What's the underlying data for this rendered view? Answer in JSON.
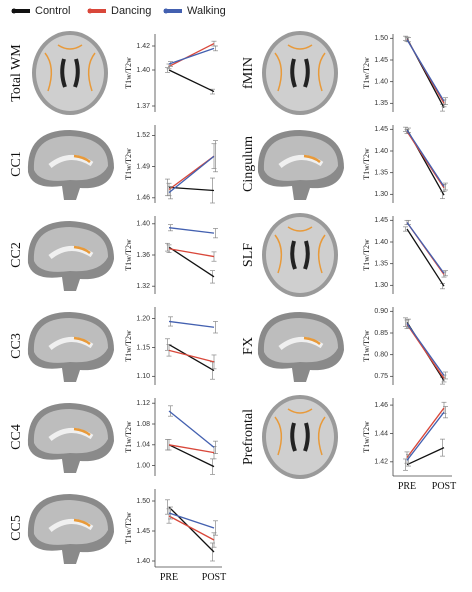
{
  "legend": [
    {
      "name": "Control",
      "color": "#111111"
    },
    {
      "name": "Dancing",
      "color": "#d9473a"
    },
    {
      "name": "Walking",
      "color": "#4360b0"
    }
  ],
  "chart_data": [
    {
      "type": "line",
      "title": "Total WM",
      "ylabel": "T1w/T2w",
      "ylim": [
        1.365,
        1.43
      ],
      "yticks": [
        1.37,
        {
          "value": 1.4,
          "label": "1.40"
        },
        1.42
      ],
      "series": [
        {
          "color": "#111111",
          "values": [
            1.4,
            1.382
          ],
          "errors": [
            0.002,
            0.002
          ]
        },
        {
          "color": "#d9473a",
          "values": [
            1.403,
            1.422
          ],
          "errors": [
            0.002,
            0.002
          ]
        },
        {
          "color": "#4360b0",
          "values": [
            1.405,
            1.418
          ],
          "errors": [
            0.002,
            0.002
          ]
        }
      ]
    },
    {
      "type": "line",
      "title": "CC1",
      "ylabel": "T1w/T2w",
      "ylim": [
        1.455,
        1.53
      ],
      "yticks": [
        1.46,
        1.49,
        1.52
      ],
      "series": [
        {
          "color": "#111111",
          "values": [
            1.47,
            1.467
          ],
          "errors": [
            0.008,
            0.012
          ]
        },
        {
          "color": "#d9473a",
          "values": [
            1.468,
            1.5
          ],
          "errors": [
            0.006,
            0.012
          ]
        },
        {
          "color": "#4360b0",
          "values": [
            1.465,
            1.5
          ],
          "errors": [
            0.006,
            0.015
          ]
        }
      ]
    },
    {
      "type": "line",
      "title": "CC2",
      "ylabel": "T1w/T2w",
      "ylim": [
        1.31,
        1.41
      ],
      "yticks": [
        1.32,
        1.36,
        {
          "value": 1.4,
          "label": "1.40"
        }
      ],
      "series": [
        {
          "color": "#111111",
          "values": [
            1.37,
            1.332
          ],
          "errors": [
            0.005,
            0.008
          ]
        },
        {
          "color": "#d9473a",
          "values": [
            1.368,
            1.358
          ],
          "errors": [
            0.005,
            0.006
          ]
        },
        {
          "color": "#4360b0",
          "values": [
            1.395,
            1.388
          ],
          "errors": [
            0.004,
            0.006
          ]
        }
      ]
    },
    {
      "type": "line",
      "title": "CC3",
      "ylabel": "T1w/T2w",
      "ylim": [
        1.085,
        1.22
      ],
      "yticks": [
        {
          "value": 1.1,
          "label": "1.10"
        },
        1.15,
        {
          "value": 1.2,
          "label": "1.20"
        }
      ],
      "series": [
        {
          "color": "#111111",
          "values": [
            1.155,
            1.11
          ],
          "errors": [
            0.01,
            0.015
          ]
        },
        {
          "color": "#d9473a",
          "values": [
            1.145,
            1.125
          ],
          "errors": [
            0.01,
            0.012
          ]
        },
        {
          "color": "#4360b0",
          "values": [
            1.195,
            1.185
          ],
          "errors": [
            0.008,
            0.01
          ]
        }
      ]
    },
    {
      "type": "line",
      "title": "CC4",
      "ylabel": "T1w/T2w",
      "ylim": [
        0.98,
        1.13
      ],
      "yticks": [
        {
          "value": 1.0,
          "label": "1.00"
        },
        1.04,
        1.08,
        1.12
      ],
      "series": [
        {
          "color": "#111111",
          "values": [
            1.04,
            0.998
          ],
          "errors": [
            0.01,
            0.015
          ]
        },
        {
          "color": "#d9473a",
          "values": [
            1.04,
            1.025
          ],
          "errors": [
            0.01,
            0.012
          ]
        },
        {
          "color": "#4360b0",
          "values": [
            1.105,
            1.035
          ],
          "errors": [
            0.01,
            0.012
          ]
        }
      ]
    },
    {
      "type": "line",
      "title": "CC5",
      "ylabel": "T1w/T2w",
      "categories": [
        "PRE",
        "POST"
      ],
      "ylim": [
        1.39,
        1.52
      ],
      "yticks": [
        {
          "value": 1.4,
          "label": "1.40"
        },
        1.45,
        {
          "value": 1.5,
          "label": "1.50"
        }
      ],
      "series": [
        {
          "color": "#111111",
          "values": [
            1.49,
            1.415
          ],
          "errors": [
            0.012,
            0.015
          ]
        },
        {
          "color": "#d9473a",
          "values": [
            1.475,
            1.435
          ],
          "errors": [
            0.012,
            0.012
          ]
        },
        {
          "color": "#4360b0",
          "values": [
            1.48,
            1.455
          ],
          "errors": [
            0.01,
            0.012
          ]
        }
      ]
    },
    {
      "type": "line",
      "title": "fMIN",
      "ylabel": "T1w/T2w",
      "ylim": [
        1.33,
        1.51
      ],
      "yticks": [
        1.35,
        {
          "value": 1.4,
          "label": "1.40"
        },
        1.45,
        {
          "value": 1.5,
          "label": "1.50"
        }
      ],
      "series": [
        {
          "color": "#111111",
          "values": [
            1.5,
            1.34
          ],
          "errors": [
            0.005,
            0.008
          ]
        },
        {
          "color": "#d9473a",
          "values": [
            1.498,
            1.35
          ],
          "errors": [
            0.005,
            0.008
          ]
        },
        {
          "color": "#4360b0",
          "values": [
            1.497,
            1.355
          ],
          "errors": [
            0.005,
            0.008
          ]
        }
      ]
    },
    {
      "type": "line",
      "title": "Cingulum",
      "ylabel": "T1w/T2w",
      "ylim": [
        1.28,
        1.46
      ],
      "yticks": [
        {
          "value": 1.3,
          "label": "1.30"
        },
        1.35,
        {
          "value": 1.4,
          "label": "1.40"
        },
        1.45
      ],
      "series": [
        {
          "color": "#111111",
          "values": [
            1.45,
            1.298
          ],
          "errors": [
            0.005,
            0.008
          ]
        },
        {
          "color": "#d9473a",
          "values": [
            1.445,
            1.315
          ],
          "errors": [
            0.005,
            0.008
          ]
        },
        {
          "color": "#4360b0",
          "values": [
            1.448,
            1.318
          ],
          "errors": [
            0.005,
            0.008
          ]
        }
      ]
    },
    {
      "type": "line",
      "title": "SLF",
      "ylabel": "T1w/T2w",
      "ylim": [
        1.28,
        1.46
      ],
      "yticks": [
        {
          "value": 1.3,
          "label": "1.30"
        },
        1.35,
        {
          "value": 1.4,
          "label": "1.40"
        },
        1.45
      ],
      "series": [
        {
          "color": "#111111",
          "values": [
            1.43,
            1.298
          ],
          "errors": [
            0.005,
            0.006
          ]
        },
        {
          "color": "#d9473a",
          "values": [
            1.445,
            1.325
          ],
          "errors": [
            0.005,
            0.006
          ]
        },
        {
          "color": "#4360b0",
          "values": [
            1.445,
            1.328
          ],
          "errors": [
            0.005,
            0.006
          ]
        }
      ]
    },
    {
      "type": "line",
      "title": "FX",
      "ylabel": "T1w/T2w",
      "ylim": [
        0.73,
        0.91
      ],
      "yticks": [
        0.75,
        {
          "value": 0.8,
          "label": "0.80"
        },
        0.85,
        {
          "value": 0.9,
          "label": "0.90"
        }
      ],
      "series": [
        {
          "color": "#111111",
          "values": [
            0.875,
            0.74
          ],
          "errors": [
            0.01,
            0.008
          ]
        },
        {
          "color": "#d9473a",
          "values": [
            0.87,
            0.745
          ],
          "errors": [
            0.01,
            0.008
          ]
        },
        {
          "color": "#4360b0",
          "values": [
            0.872,
            0.752
          ],
          "errors": [
            0.01,
            0.008
          ]
        }
      ]
    },
    {
      "type": "line",
      "title": "Prefrontal",
      "ylabel": "T1w/T2w",
      "categories": [
        "PRE",
        "POST"
      ],
      "ylim": [
        1.41,
        1.465
      ],
      "yticks": [
        1.42,
        1.44,
        1.46
      ],
      "series": [
        {
          "color": "#111111",
          "values": [
            1.418,
            1.43
          ],
          "errors": [
            0.004,
            0.006
          ]
        },
        {
          "color": "#d9473a",
          "values": [
            1.423,
            1.458
          ],
          "errors": [
            0.004,
            0.004
          ]
        },
        {
          "color": "#4360b0",
          "values": [
            1.421,
            1.455
          ],
          "errors": [
            0.004,
            0.004
          ]
        }
      ]
    }
  ]
}
